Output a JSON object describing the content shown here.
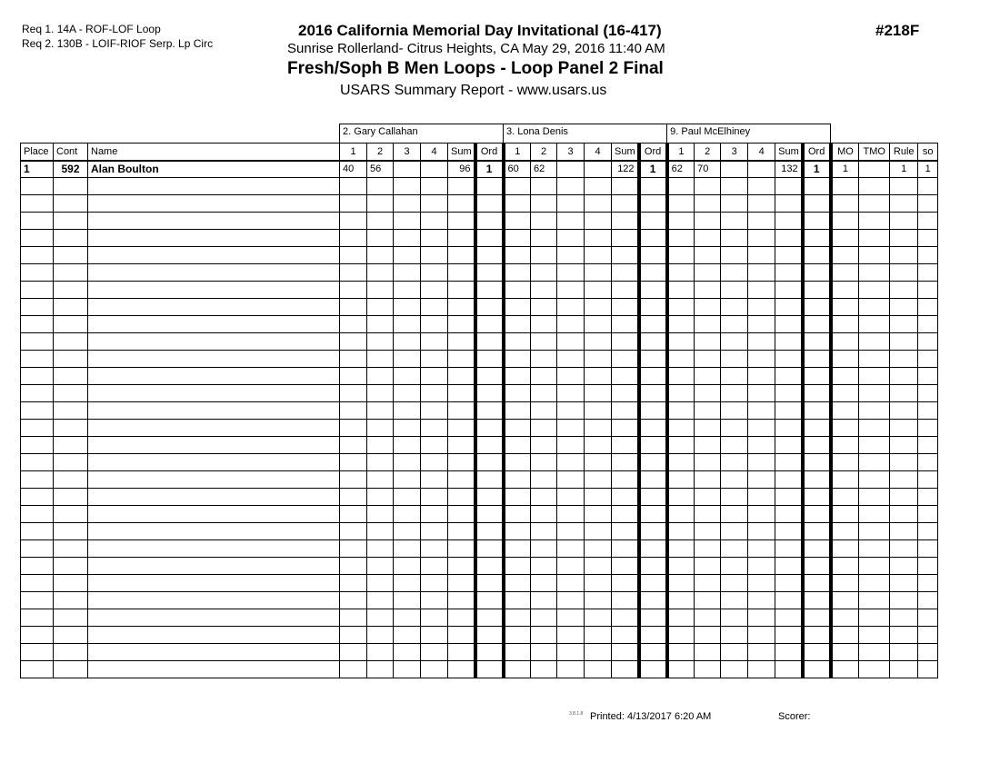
{
  "requirements": [
    "Req  1.  14A - ROF-LOF Loop",
    "Req  2.  130B - LOIF-RIOF Serp. Lp Circ"
  ],
  "header": {
    "title": "2016 California Memorial Day Invitational (16-417)",
    "location_date": "Sunrise Rollerland- Citrus Heights, CA  May 29, 2016  11:40 AM",
    "event": "Fresh/Soph B Men Loops - Loop Panel 2 Final",
    "report": "USARS Summary Report - www.usars.us",
    "event_number": "#218F"
  },
  "judges": [
    "2.  Gary Callahan",
    "3.  Lona Denis",
    "9.  Paul McElhiney"
  ],
  "columns": {
    "place": "Place",
    "cont": "Cont",
    "name": "Name",
    "judge_cols": [
      "1",
      "2",
      "3",
      "4",
      "Sum",
      "Ord"
    ],
    "extra": [
      "MO",
      "TMO",
      "Rule",
      "so"
    ]
  },
  "rows": [
    {
      "place": "1",
      "cont": "592",
      "name": "Alan Boulton",
      "scores": [
        [
          "40",
          "56",
          "",
          "",
          "96",
          "1"
        ],
        [
          "60",
          "62",
          "",
          "",
          "122",
          "1"
        ],
        [
          "62",
          "70",
          "",
          "",
          "132",
          "1"
        ]
      ],
      "extra": [
        "1",
        "",
        "1",
        "1"
      ]
    }
  ],
  "footer": {
    "version": "3.8.1.8",
    "printed": "Printed:  4/13/2017  6:20 AM",
    "scorer": "Scorer:"
  }
}
